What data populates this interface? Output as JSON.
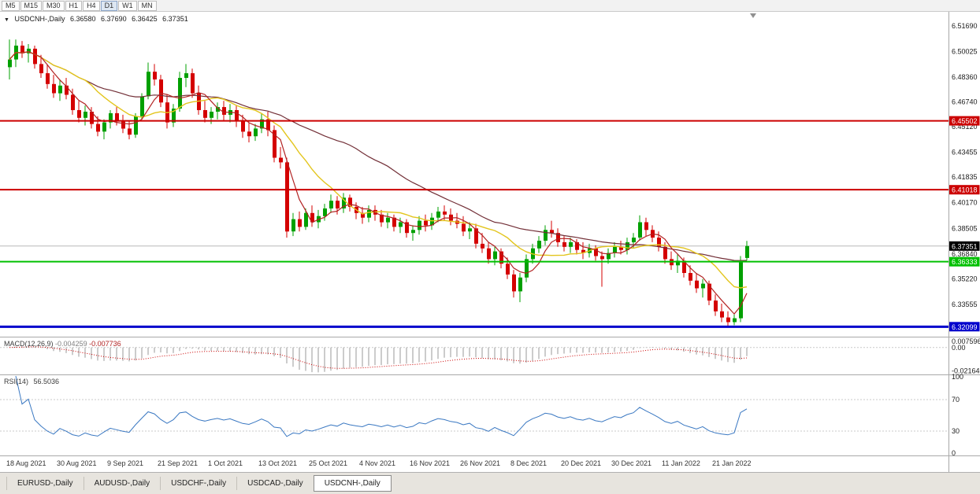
{
  "toolbar": {
    "timeframes": [
      "M5",
      "M15",
      "M30",
      "H1",
      "H4",
      "D1",
      "W1",
      "MN"
    ],
    "active": "D1"
  },
  "chart": {
    "title": {
      "symbol": "USDCNH-,Daily",
      "open": "6.36580",
      "high": "6.37690",
      "low": "6.36425",
      "close": "6.37351"
    }
  },
  "macd": {
    "name": "MACD(12,26,9)",
    "value": "-0.004259",
    "signal_value": "-0.007736",
    "axis": [
      "0.007596",
      "0.00",
      "-0.02164"
    ],
    "range": {
      "max": 0.0076,
      "min": -0.0216
    }
  },
  "rsi": {
    "name": "RSI(14)",
    "value": "56.5036",
    "axis": [
      "100",
      "70",
      "30",
      "0"
    ],
    "levels": [
      70,
      30
    ]
  },
  "tabs": {
    "items": [
      "EURUSD-,Daily",
      "AUDUSD-,Daily",
      "USDCHF-,Daily",
      "USDCAD-,Daily",
      "USDCNH-,Daily"
    ],
    "active": "USDCNH-,Daily"
  },
  "colors": {
    "bull": "#00a000",
    "bear": "#d40000",
    "ma_fast": "#b22222",
    "ma_mid": "#e3c51d",
    "ma_slow": "#722f37",
    "macd_bars": "#9a9a9a",
    "macd_signal": "#cc0000",
    "rsi_line": "#3a78c2",
    "last_price_bg": "#000000",
    "axis_text": "#1a1a1a"
  },
  "chart_data": {
    "type": "candlestick",
    "symbol": "USDCNH",
    "timeframe": "Daily",
    "last_price": 6.37351,
    "price_scale": {
      "top": 6.525,
      "bottom": 6.3145
    },
    "y_axis_ticks": [
      "6.51690",
      "6.50025",
      "6.48360",
      "6.46740",
      "6.45120",
      "6.43455",
      "6.41835",
      "6.40170",
      "6.38505",
      "6.36840",
      "6.35220",
      "6.33555"
    ],
    "x_axis_labels": [
      {
        "label": "18 Aug 2021",
        "index": 0
      },
      {
        "label": "30 Aug 2021",
        "index": 8
      },
      {
        "label": "9 Sep 2021",
        "index": 16
      },
      {
        "label": "21 Sep 2021",
        "index": 24
      },
      {
        "label": "1 Oct 2021",
        "index": 32
      },
      {
        "label": "13 Oct 2021",
        "index": 40
      },
      {
        "label": "25 Oct 2021",
        "index": 48
      },
      {
        "label": "4 Nov 2021",
        "index": 56
      },
      {
        "label": "16 Nov 2021",
        "index": 64
      },
      {
        "label": "26 Nov 2021",
        "index": 72
      },
      {
        "label": "8 Dec 2021",
        "index": 80
      },
      {
        "label": "20 Dec 2021",
        "index": 88
      },
      {
        "label": "30 Dec 2021",
        "index": 96
      },
      {
        "label": "11 Jan 2022",
        "index": 104
      },
      {
        "label": "21 Jan 2022",
        "index": 112
      }
    ],
    "horizontal_lines": [
      {
        "value": 6.45502,
        "label": "6.45502",
        "color": "#cc0000",
        "width": 2,
        "name": "resistance-line-upper"
      },
      {
        "value": 6.41018,
        "label": "6.41018",
        "color": "#cc0000",
        "width": 2,
        "name": "resistance-line-lower"
      },
      {
        "value": 6.36333,
        "label": "6.36333",
        "color": "#00c000",
        "width": 2,
        "name": "support-line-green"
      },
      {
        "value": 6.32099,
        "label": "6.32099",
        "color": "#0000cc",
        "width": 3,
        "name": "support-line-blue"
      }
    ],
    "moving_average_periods": {
      "fast": 5,
      "mid": 13,
      "slow": 34
    },
    "ohlc": [
      [
        6.49,
        6.508,
        6.482,
        6.495
      ],
      [
        6.495,
        6.508,
        6.49,
        6.504
      ],
      [
        6.504,
        6.507,
        6.496,
        6.499
      ],
      [
        6.499,
        6.505,
        6.493,
        6.502
      ],
      [
        6.502,
        6.504,
        6.489,
        6.492
      ],
      [
        6.492,
        6.498,
        6.483,
        6.486
      ],
      [
        6.486,
        6.492,
        6.476,
        6.479
      ],
      [
        6.479,
        6.485,
        6.47,
        6.473
      ],
      [
        6.473,
        6.482,
        6.468,
        6.478
      ],
      [
        6.478,
        6.483,
        6.469,
        6.472
      ],
      [
        6.472,
        6.476,
        6.459,
        6.462
      ],
      [
        6.462,
        6.468,
        6.454,
        6.457
      ],
      [
        6.457,
        6.465,
        6.452,
        6.461
      ],
      [
        6.461,
        6.464,
        6.45,
        6.453
      ],
      [
        6.453,
        6.458,
        6.445,
        6.448
      ],
      [
        6.448,
        6.456,
        6.443,
        6.454
      ],
      [
        6.454,
        6.462,
        6.45,
        6.46
      ],
      [
        6.46,
        6.464,
        6.452,
        6.455
      ],
      [
        6.455,
        6.459,
        6.447,
        6.45
      ],
      [
        6.45,
        6.455,
        6.443,
        6.446
      ],
      [
        6.446,
        6.46,
        6.444,
        6.458
      ],
      [
        6.458,
        6.473,
        6.456,
        6.471
      ],
      [
        6.471,
        6.493,
        6.469,
        6.487
      ],
      [
        6.487,
        6.492,
        6.478,
        6.482
      ],
      [
        6.482,
        6.485,
        6.464,
        6.467
      ],
      [
        6.467,
        6.472,
        6.45,
        6.454
      ],
      [
        6.454,
        6.466,
        6.451,
        6.463
      ],
      [
        6.463,
        6.487,
        6.461,
        6.483
      ],
      [
        6.483,
        6.492,
        6.477,
        6.486
      ],
      [
        6.486,
        6.489,
        6.47,
        6.473
      ],
      [
        6.473,
        6.478,
        6.459,
        6.462
      ],
      [
        6.462,
        6.468,
        6.454,
        6.457
      ],
      [
        6.457,
        6.464,
        6.453,
        6.461
      ],
      [
        6.461,
        6.467,
        6.456,
        6.464
      ],
      [
        6.464,
        6.468,
        6.455,
        6.459
      ],
      [
        6.459,
        6.466,
        6.454,
        6.462
      ],
      [
        6.462,
        6.465,
        6.451,
        6.455
      ],
      [
        6.455,
        6.459,
        6.444,
        6.448
      ],
      [
        6.448,
        6.454,
        6.441,
        6.445
      ],
      [
        6.445,
        6.453,
        6.442,
        6.45
      ],
      [
        6.45,
        6.46,
        6.447,
        6.456
      ],
      [
        6.456,
        6.461,
        6.445,
        6.449
      ],
      [
        6.449,
        6.452,
        6.428,
        6.431
      ],
      [
        6.431,
        6.438,
        6.424,
        6.428
      ],
      [
        6.428,
        6.431,
        6.379,
        6.383
      ],
      [
        6.383,
        6.395,
        6.38,
        6.391
      ],
      [
        6.391,
        6.396,
        6.383,
        6.386
      ],
      [
        6.386,
        6.398,
        6.384,
        6.395
      ],
      [
        6.395,
        6.4,
        6.386,
        6.389
      ],
      [
        6.389,
        6.397,
        6.385,
        6.393
      ],
      [
        6.393,
        6.401,
        6.39,
        6.398
      ],
      [
        6.398,
        6.407,
        6.395,
        6.403
      ],
      [
        6.403,
        6.406,
        6.394,
        6.398
      ],
      [
        6.398,
        6.408,
        6.395,
        6.405
      ],
      [
        6.405,
        6.407,
        6.396,
        6.399
      ],
      [
        6.399,
        6.402,
        6.391,
        6.395
      ],
      [
        6.395,
        6.399,
        6.388,
        6.392
      ],
      [
        6.392,
        6.4,
        6.389,
        6.397
      ],
      [
        6.397,
        6.4,
        6.39,
        6.394
      ],
      [
        6.394,
        6.397,
        6.386,
        6.389
      ],
      [
        6.389,
        6.395,
        6.385,
        6.392
      ],
      [
        6.392,
        6.394,
        6.383,
        6.386
      ],
      [
        6.386,
        6.392,
        6.382,
        6.389
      ],
      [
        6.389,
        6.391,
        6.379,
        6.382
      ],
      [
        6.382,
        6.387,
        6.377,
        6.384
      ],
      [
        6.384,
        6.393,
        6.381,
        6.39
      ],
      [
        6.39,
        6.394,
        6.383,
        6.387
      ],
      [
        6.387,
        6.395,
        6.384,
        6.392
      ],
      [
        6.392,
        6.399,
        6.389,
        6.396
      ],
      [
        6.396,
        6.4,
        6.39,
        6.394
      ],
      [
        6.394,
        6.398,
        6.387,
        6.39
      ],
      [
        6.39,
        6.395,
        6.385,
        6.388
      ],
      [
        6.388,
        6.393,
        6.38,
        6.383
      ],
      [
        6.383,
        6.389,
        6.378,
        6.385
      ],
      [
        6.385,
        6.388,
        6.372,
        6.375
      ],
      [
        6.375,
        6.382,
        6.369,
        6.372
      ],
      [
        6.372,
        6.376,
        6.362,
        6.365
      ],
      [
        6.365,
        6.373,
        6.361,
        6.37
      ],
      [
        6.37,
        6.372,
        6.359,
        6.362
      ],
      [
        6.362,
        6.366,
        6.352,
        6.355
      ],
      [
        6.355,
        6.358,
        6.34,
        6.344
      ],
      [
        6.344,
        6.356,
        6.337,
        6.353
      ],
      [
        6.353,
        6.368,
        6.35,
        6.365
      ],
      [
        6.365,
        6.375,
        6.362,
        6.372
      ],
      [
        6.372,
        6.38,
        6.369,
        6.377
      ],
      [
        6.377,
        6.387,
        6.374,
        6.384
      ],
      [
        6.384,
        6.39,
        6.379,
        6.382
      ],
      [
        6.382,
        6.385,
        6.373,
        6.376
      ],
      [
        6.376,
        6.38,
        6.37,
        6.373
      ],
      [
        6.373,
        6.379,
        6.369,
        6.376
      ],
      [
        6.376,
        6.378,
        6.368,
        6.371
      ],
      [
        6.371,
        6.376,
        6.365,
        6.369
      ],
      [
        6.369,
        6.375,
        6.366,
        6.372
      ],
      [
        6.372,
        6.374,
        6.364,
        6.367
      ],
      [
        6.367,
        6.37,
        6.347,
        6.365
      ],
      [
        6.365,
        6.372,
        6.362,
        6.369
      ],
      [
        6.369,
        6.376,
        6.366,
        6.373
      ],
      [
        6.373,
        6.377,
        6.368,
        6.371
      ],
      [
        6.371,
        6.379,
        6.368,
        6.376
      ],
      [
        6.376,
        6.382,
        6.372,
        6.379
      ],
      [
        6.379,
        6.3935,
        6.377,
        6.389
      ],
      [
        6.389,
        6.392,
        6.38,
        6.384
      ],
      [
        6.384,
        6.387,
        6.376,
        6.379
      ],
      [
        6.379,
        6.383,
        6.37,
        6.373
      ],
      [
        6.373,
        6.376,
        6.362,
        6.365
      ],
      [
        6.365,
        6.37,
        6.358,
        6.361
      ],
      [
        6.361,
        6.368,
        6.356,
        6.364
      ],
      [
        6.364,
        6.366,
        6.353,
        6.356
      ],
      [
        6.356,
        6.361,
        6.348,
        6.351
      ],
      [
        6.351,
        6.356,
        6.343,
        6.346
      ],
      [
        6.346,
        6.352,
        6.34,
        6.349
      ],
      [
        6.349,
        6.351,
        6.335,
        6.338
      ],
      [
        6.338,
        6.342,
        6.328,
        6.331
      ],
      [
        6.331,
        6.336,
        6.324,
        6.327
      ],
      [
        6.327,
        6.331,
        6.3215,
        6.324
      ],
      [
        6.324,
        6.329,
        6.322,
        6.3265
      ],
      [
        6.3265,
        6.367,
        6.324,
        6.363
      ],
      [
        6.3658,
        6.3769,
        6.36425,
        6.37351
      ]
    ]
  }
}
